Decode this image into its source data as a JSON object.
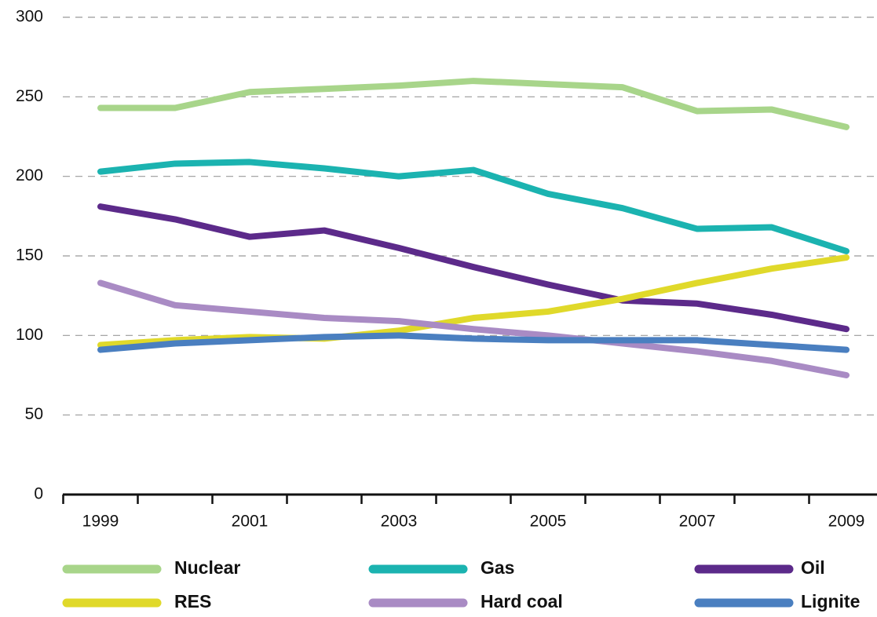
{
  "chart_data": {
    "type": "line",
    "categories": [
      "1999",
      null,
      "2001",
      null,
      "2003",
      null,
      "2005",
      null,
      "2007",
      null,
      "2009"
    ],
    "series": [
      {
        "name": "Nuclear",
        "color": "#a8d58a",
        "values": [
          243,
          243,
          253,
          255,
          257,
          260,
          258,
          256,
          241,
          242,
          231
        ]
      },
      {
        "name": "Gas",
        "color": "#1bb3b0",
        "values": [
          203,
          208,
          209,
          205,
          200,
          204,
          189,
          180,
          167,
          168,
          153
        ]
      },
      {
        "name": "Oil",
        "color": "#5c2a8a",
        "values": [
          181,
          173,
          162,
          166,
          155,
          143,
          132,
          122,
          120,
          113,
          104
        ]
      },
      {
        "name": "RES",
        "color": "#e0d92a",
        "values": [
          94,
          97,
          99,
          98,
          103,
          111,
          115,
          123,
          133,
          142,
          149
        ]
      },
      {
        "name": "Hard coal",
        "color": "#a98bc4",
        "values": [
          133,
          119,
          115,
          111,
          109,
          104,
          100,
          95,
          90,
          84,
          75
        ]
      },
      {
        "name": "Lignite",
        "color": "#4a7fc0",
        "values": [
          91,
          95,
          97,
          99,
          100,
          98,
          97,
          97,
          97,
          94,
          91
        ]
      }
    ],
    "ylim": [
      0,
      300
    ],
    "yticks": [
      0,
      50,
      100,
      150,
      200,
      250,
      300
    ],
    "grid": true
  }
}
